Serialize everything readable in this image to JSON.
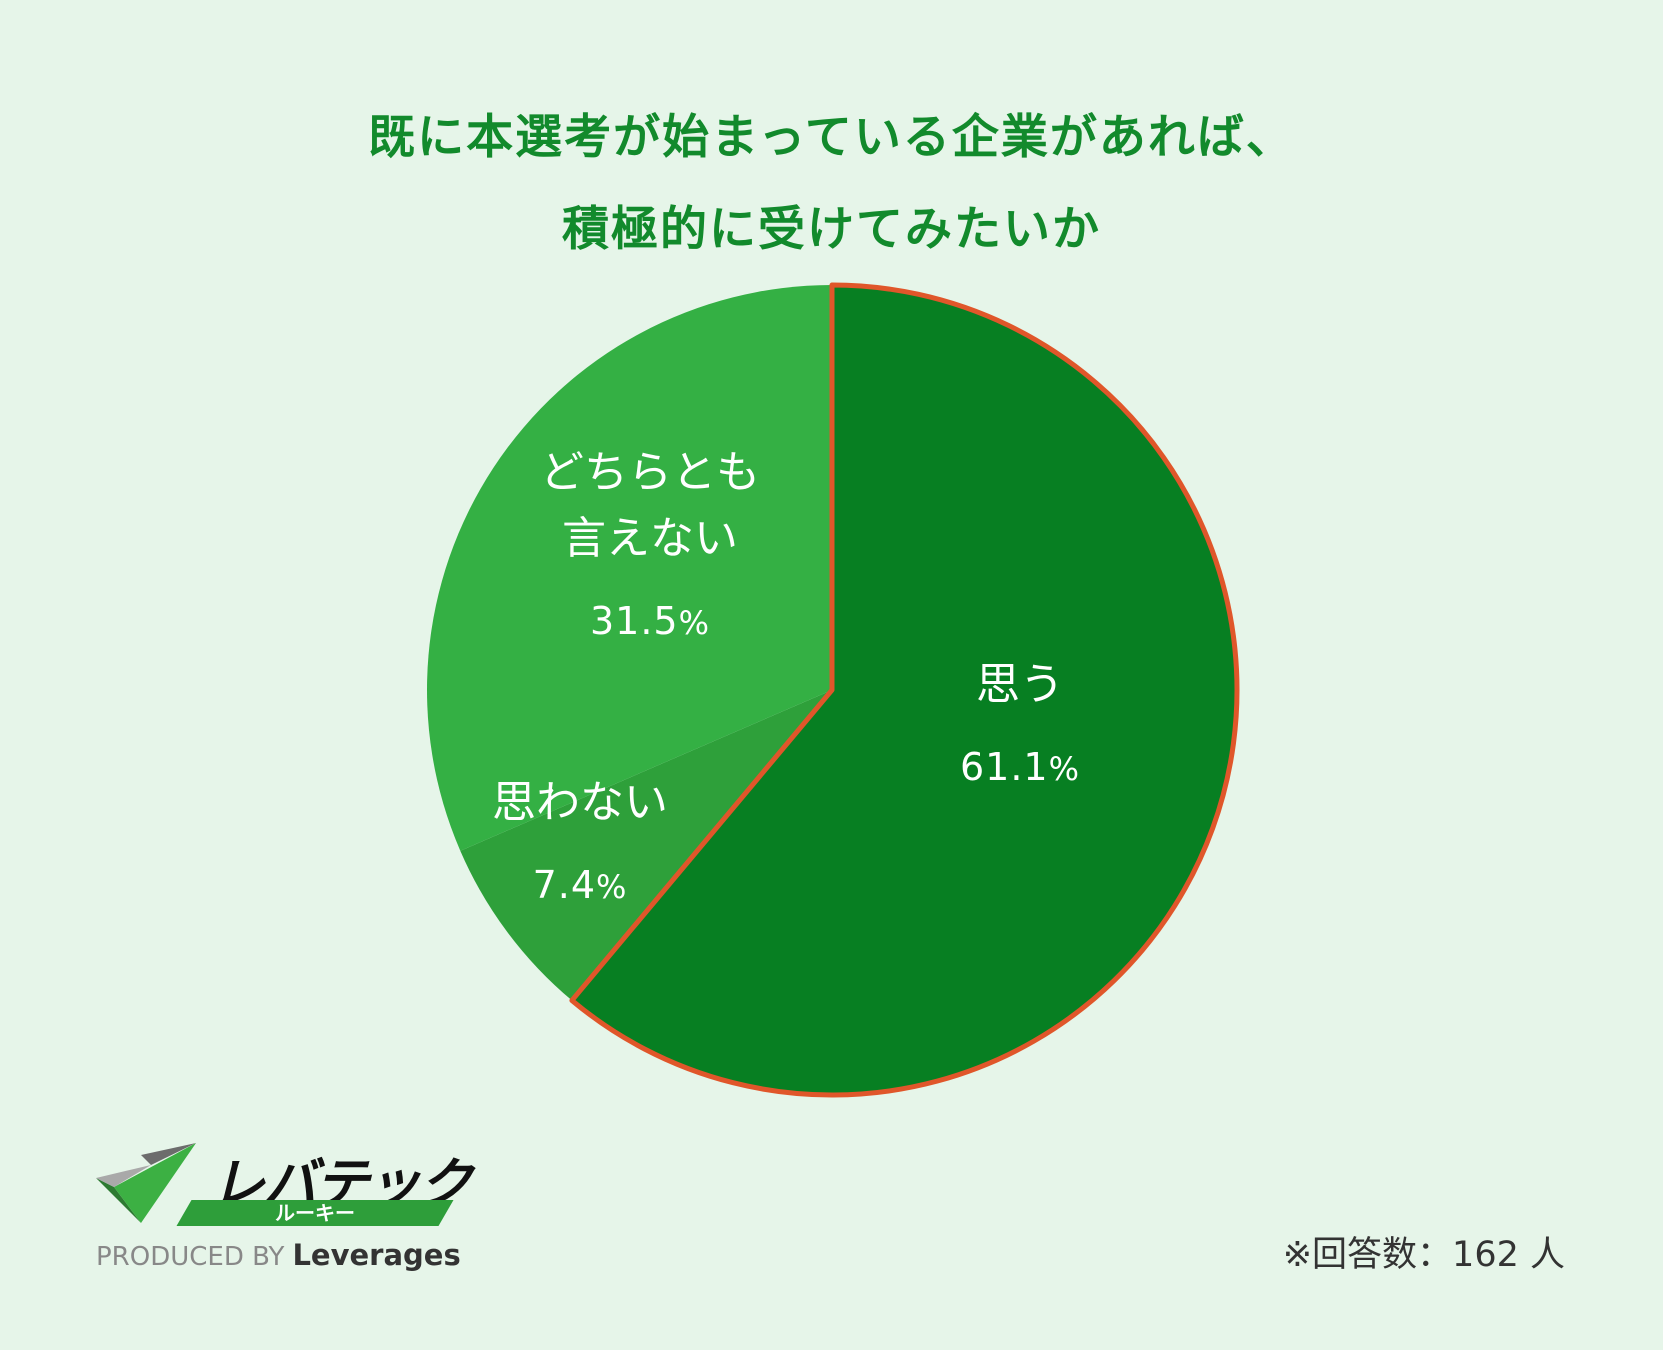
{
  "title": {
    "line1": "既に本選考が始まっている企業があれば、",
    "line2": "積極的に受けてみたいか"
  },
  "chart_data": {
    "type": "pie",
    "title": "既に本選考が始まっている企業があれば、積極的に受けてみたいか",
    "slices": [
      {
        "label": "思う",
        "value": 61.1,
        "color": "#077f22",
        "highlight": true
      },
      {
        "label": "思わない",
        "value": 7.4,
        "color": "#2ea03a"
      },
      {
        "label": "どちらとも言えない",
        "value": 31.5,
        "color": "#34b044"
      }
    ],
    "label_text": {
      "yes": {
        "name": "思う",
        "value": "61.1",
        "unit": "%"
      },
      "no": {
        "name": "思わない",
        "value": "7.4",
        "unit": "%"
      },
      "neutral": {
        "name_line1": "どちらとも",
        "name_line2": "言えない",
        "value": "31.5",
        "unit": "%"
      }
    },
    "highlight_color": "#e0562a"
  },
  "logo": {
    "name": "レバテック",
    "sub": "ルーキー",
    "produced_by": "PRODUCED BY",
    "brand": "Leverages"
  },
  "footnote": "※回答数：162 人"
}
